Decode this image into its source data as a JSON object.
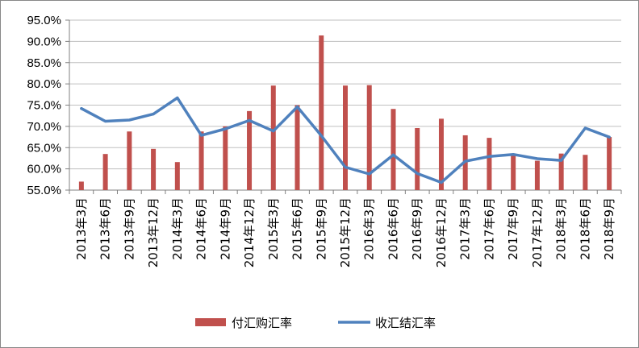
{
  "colors": {
    "bar": "#C0504D",
    "line": "#4F81BD",
    "grid": "#BFBFBF",
    "axis": "#808080"
  },
  "chart_data": {
    "type": "bar",
    "title": "",
    "xlabel": "",
    "ylabel": "",
    "ylim": [
      55,
      95
    ],
    "ytick_step": 5,
    "ytick_format": "percent-1dp",
    "grid": true,
    "legend_position": "bottom",
    "categories": [
      "2013年3月",
      "2013年6月",
      "2013年9月",
      "2013年12月",
      "2014年3月",
      "2014年6月",
      "2014年9月",
      "2014年12月",
      "2015年3月",
      "2015年6月",
      "2015年9月",
      "2015年12月",
      "2016年3月",
      "2016年6月",
      "2016年9月",
      "2016年12月",
      "2017年3月",
      "2017年6月",
      "2017年9月",
      "2017年12月",
      "2018年3月",
      "2018年6月",
      "2018年9月"
    ],
    "series": [
      {
        "name": "付汇购汇率",
        "type": "bar",
        "values": [
          57.0,
          63.5,
          68.8,
          64.7,
          61.6,
          68.8,
          70.0,
          73.6,
          79.6,
          75.0,
          91.4,
          79.6,
          79.7,
          74.1,
          69.6,
          71.8,
          67.9,
          67.3,
          63.4,
          61.9,
          63.6,
          63.3,
          67.5
        ]
      },
      {
        "name": "收汇结汇率",
        "type": "line",
        "values": [
          74.2,
          71.2,
          71.5,
          72.9,
          76.7,
          67.9,
          69.4,
          71.4,
          68.9,
          74.6,
          67.8,
          60.4,
          58.8,
          63.3,
          58.9,
          56.8,
          61.8,
          62.9,
          63.4,
          62.4,
          62.0,
          69.6,
          67.5
        ]
      }
    ]
  }
}
